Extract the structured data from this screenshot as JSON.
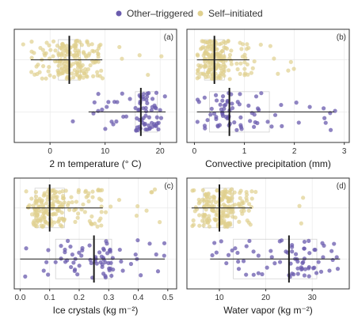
{
  "legend": {
    "items": [
      {
        "label": "Other–triggered",
        "color": "#6a5bad"
      },
      {
        "label": "Self–initiated",
        "color": "#e0d08e"
      }
    ]
  },
  "colors": {
    "other": "#6a5bad",
    "self": "#e0d08e",
    "stats": "#1a1a1a",
    "grid": "#e6e6e6",
    "box": "#cccccc"
  },
  "chart_data": [
    {
      "type": "scatter",
      "panel_label": "(a)",
      "xlabel": "2 m temperature (° C)",
      "xlim": [
        -6.5,
        23
      ],
      "ticks": [
        0,
        10,
        20
      ],
      "tick_labels": [
        "0",
        "10",
        "20"
      ],
      "series": [
        {
          "name": "Self–initiated",
          "median": 3.5,
          "q1": 1.5,
          "q3": 5.5,
          "whisker_low": -3.5,
          "whisker_high": 9.5,
          "n_points": 190,
          "range": [
            -5,
            21
          ]
        },
        {
          "name": "Other–triggered",
          "median": 16.5,
          "q1": 15.5,
          "q3": 19.5,
          "whisker_low": 7,
          "whisker_high": 21,
          "n_points": 75,
          "range": [
            4,
            22
          ]
        }
      ]
    },
    {
      "type": "scatter",
      "panel_label": "(b)",
      "xlabel": "Convective precipitation (mm)",
      "xlim": [
        -0.15,
        3.1
      ],
      "ticks": [
        0,
        1,
        2,
        3
      ],
      "tick_labels": [
        "0",
        "1",
        "2",
        "3"
      ],
      "series": [
        {
          "name": "Self–initiated",
          "median": 0.4,
          "q1": 0.2,
          "q3": 0.6,
          "whisker_low": 0.05,
          "whisker_high": 1.1,
          "n_points": 190,
          "range": [
            0,
            2.0
          ]
        },
        {
          "name": "Other–triggered",
          "median": 0.7,
          "q1": 0.3,
          "q3": 1.5,
          "whisker_low": 0.05,
          "whisker_high": 2.8,
          "n_points": 75,
          "range": [
            0,
            2.95
          ]
        }
      ]
    },
    {
      "type": "scatter",
      "panel_label": "(c)",
      "xlabel": "Ice crystals (kg m⁻²)",
      "xlim": [
        -0.02,
        0.53
      ],
      "ticks": [
        0.0,
        0.1,
        0.2,
        0.3,
        0.4,
        0.5
      ],
      "tick_labels": [
        "0.0",
        "0.1",
        "0.2",
        "0.3",
        "0.4",
        "0.5"
      ],
      "series": [
        {
          "name": "Self–initiated",
          "median": 0.1,
          "q1": 0.05,
          "q3": 0.15,
          "whisker_low": 0.02,
          "whisker_high": 0.28,
          "n_points": 190,
          "range": [
            0,
            0.48
          ]
        },
        {
          "name": "Other–triggered",
          "median": 0.25,
          "q1": 0.12,
          "q3": 0.31,
          "whisker_low": 0.0,
          "whisker_high": 0.49,
          "n_points": 75,
          "range": [
            0,
            0.49
          ]
        }
      ]
    },
    {
      "type": "scatter",
      "panel_label": "(d)",
      "xlabel": "Water vapor (kg m⁻²)",
      "xlim": [
        3,
        38
      ],
      "ticks": [
        10,
        20,
        30
      ],
      "tick_labels": [
        "10",
        "20",
        "30"
      ],
      "series": [
        {
          "name": "Self–initiated",
          "median": 10,
          "q1": 6.5,
          "q3": 13,
          "whisker_low": 4,
          "whisker_high": 17,
          "n_points": 190,
          "range": [
            4,
            30
          ]
        },
        {
          "name": "Other–triggered",
          "median": 25,
          "q1": 13,
          "q3": 31,
          "whisker_low": 8,
          "whisker_high": 36,
          "n_points": 75,
          "range": [
            8,
            36
          ]
        }
      ]
    }
  ]
}
